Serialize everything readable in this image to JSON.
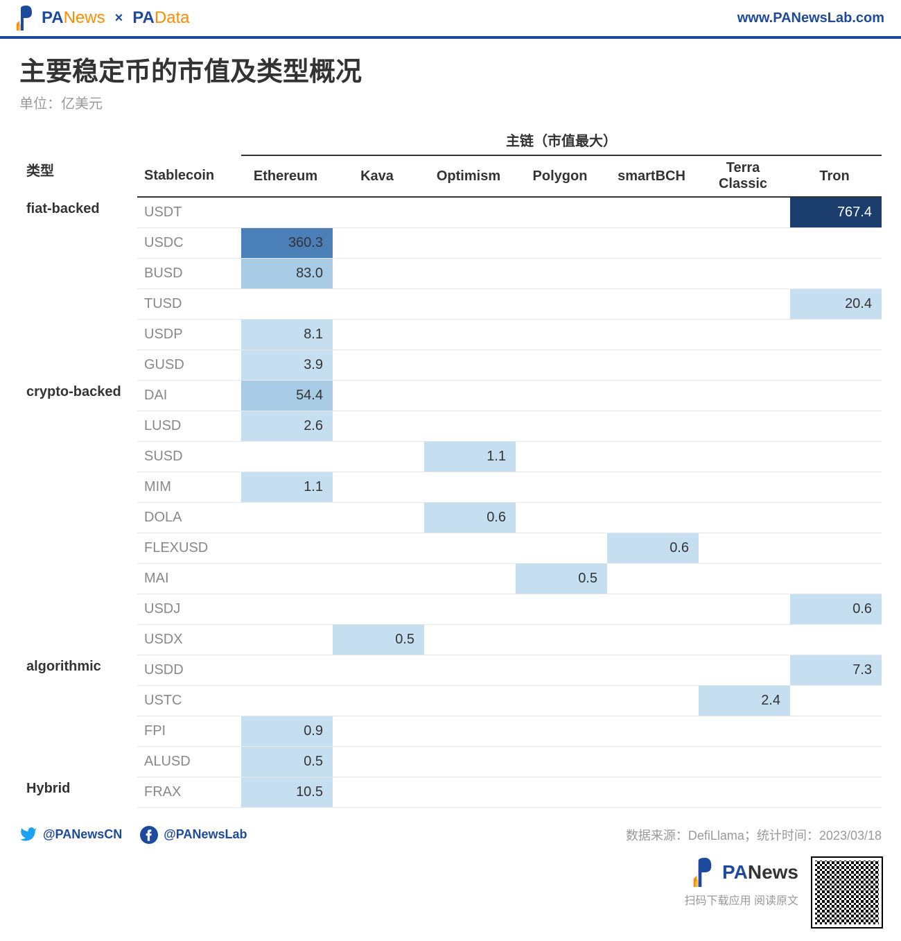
{
  "header": {
    "brand1_pa": "PA",
    "brand1_rest": "News",
    "x": "×",
    "brand2_pa": "PA",
    "brand2_rest": "Data",
    "url": "www.PANewsLab.com"
  },
  "title": "主要稳定币的市值及类型概况",
  "subtitle": "单位：亿美元",
  "table": {
    "super_header": "主链（市值最大）",
    "col_type": "类型",
    "col_coin": "Stablecoin",
    "chains": [
      "Ethereum",
      "Kava",
      "Optimism",
      "Polygon",
      "smartBCH",
      "Terra Classic",
      "Tron"
    ],
    "groups": [
      {
        "type": "fiat-backed",
        "rows": [
          {
            "coin": "USDT",
            "vals": {
              "Tron": {
                "v": "767.4",
                "shade": "dark"
              }
            }
          },
          {
            "coin": "USDC",
            "vals": {
              "Ethereum": {
                "v": "360.3",
                "shade": "med"
              }
            }
          },
          {
            "coin": "BUSD",
            "vals": {
              "Ethereum": {
                "v": "83.0",
                "shade": "light"
              }
            }
          },
          {
            "coin": "TUSD",
            "vals": {
              "Tron": {
                "v": "20.4",
                "shade": "lighter"
              }
            }
          },
          {
            "coin": "USDP",
            "vals": {
              "Ethereum": {
                "v": "8.1",
                "shade": "lighter"
              }
            }
          },
          {
            "coin": "GUSD",
            "vals": {
              "Ethereum": {
                "v": "3.9",
                "shade": "lighter"
              }
            }
          }
        ]
      },
      {
        "type": "crypto-backed",
        "rows": [
          {
            "coin": "DAI",
            "vals": {
              "Ethereum": {
                "v": "54.4",
                "shade": "light"
              }
            }
          },
          {
            "coin": "LUSD",
            "vals": {
              "Ethereum": {
                "v": "2.6",
                "shade": "lighter"
              }
            }
          },
          {
            "coin": "SUSD",
            "vals": {
              "Optimism": {
                "v": "1.1",
                "shade": "lighter"
              }
            }
          },
          {
            "coin": "MIM",
            "vals": {
              "Ethereum": {
                "v": "1.1",
                "shade": "lighter"
              }
            }
          },
          {
            "coin": "DOLA",
            "vals": {
              "Optimism": {
                "v": "0.6",
                "shade": "lighter"
              }
            }
          },
          {
            "coin": "FLEXUSD",
            "vals": {
              "smartBCH": {
                "v": "0.6",
                "shade": "lighter"
              }
            }
          },
          {
            "coin": "MAI",
            "vals": {
              "Polygon": {
                "v": "0.5",
                "shade": "lighter"
              }
            }
          },
          {
            "coin": "USDJ",
            "vals": {
              "Tron": {
                "v": "0.6",
                "shade": "lighter"
              }
            }
          },
          {
            "coin": "USDX",
            "vals": {
              "Kava": {
                "v": "0.5",
                "shade": "lighter"
              }
            }
          }
        ]
      },
      {
        "type": "algorithmic",
        "rows": [
          {
            "coin": "USDD",
            "vals": {
              "Tron": {
                "v": "7.3",
                "shade": "lighter"
              }
            }
          },
          {
            "coin": "USTC",
            "vals": {
              "Terra Classic": {
                "v": "2.4",
                "shade": "lighter"
              }
            }
          },
          {
            "coin": "FPI",
            "vals": {
              "Ethereum": {
                "v": "0.9",
                "shade": "lighter"
              }
            }
          },
          {
            "coin": "ALUSD",
            "vals": {
              "Ethereum": {
                "v": "0.5",
                "shade": "lighter"
              }
            }
          }
        ]
      },
      {
        "type": "Hybrid",
        "rows": [
          {
            "coin": "FRAX",
            "vals": {
              "Ethereum": {
                "v": "10.5",
                "shade": "lighter"
              }
            }
          }
        ]
      }
    ],
    "colors": {
      "dark": "#1a3d6e",
      "med": "#4a7fb8",
      "light": "#a8cce5",
      "lighter": "#c5dff0",
      "grid": "#e5e5e5",
      "header_border": "#333333"
    }
  },
  "footer": {
    "twitter": "@PANewsCN",
    "facebook": "@PANewsLab",
    "source": "数据来源：DefiLlama；统计时间：2023/03/18"
  },
  "bottom": {
    "pa": "PA",
    "news": "News",
    "tagline": "扫码下载应用 阅读原文"
  }
}
